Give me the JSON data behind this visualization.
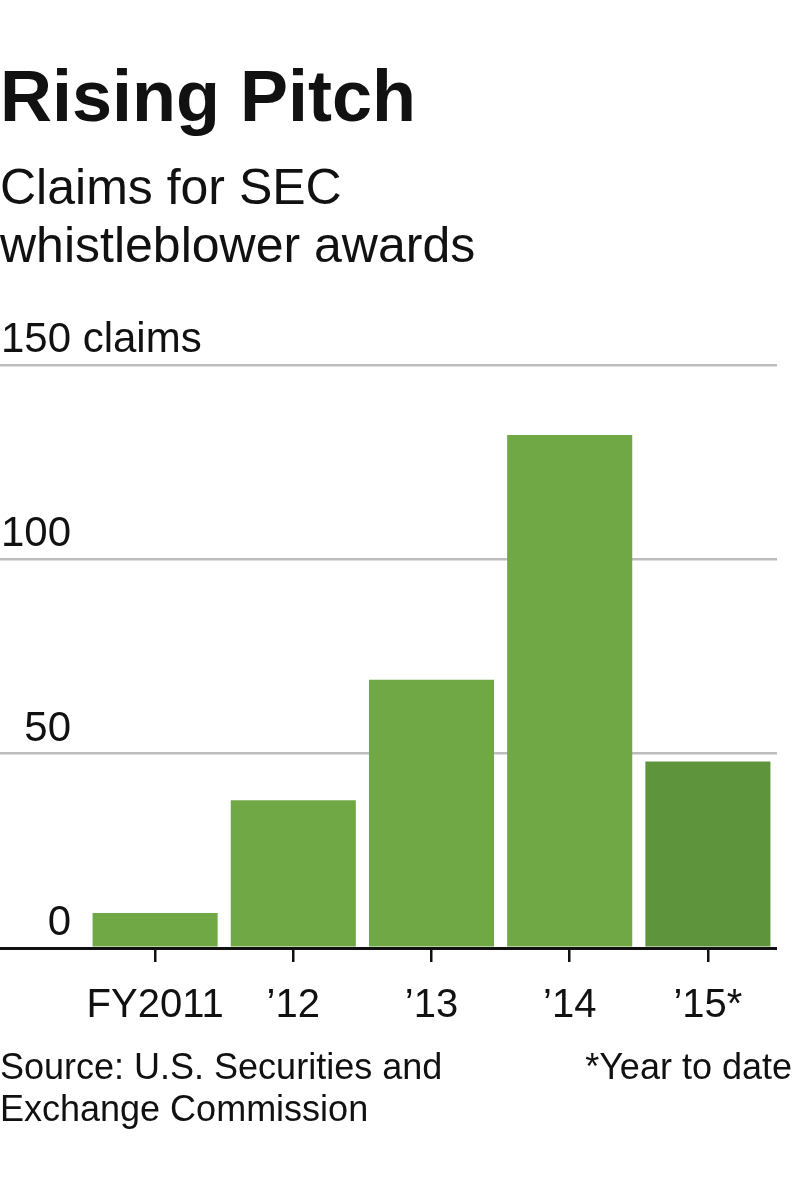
{
  "chart_data": {
    "type": "bar",
    "title": "Rising Pitch",
    "subtitle": "Claims for SEC whistleblower awards",
    "ylabel": "claims",
    "categories": [
      "FY2011",
      "’12",
      "’13",
      "’14",
      "’15*"
    ],
    "values": [
      9,
      38,
      69,
      132,
      48
    ],
    "colors": [
      "#6fa845",
      "#6fa845",
      "#6fa845",
      "#6fa845",
      "#5e943b"
    ],
    "ylim": [
      0,
      150
    ],
    "yticks": [
      0,
      50,
      100,
      150
    ],
    "grid": "y",
    "annotations": [
      "Source: U.S. Securities and Exchange Commission",
      "*Year to date"
    ]
  }
}
